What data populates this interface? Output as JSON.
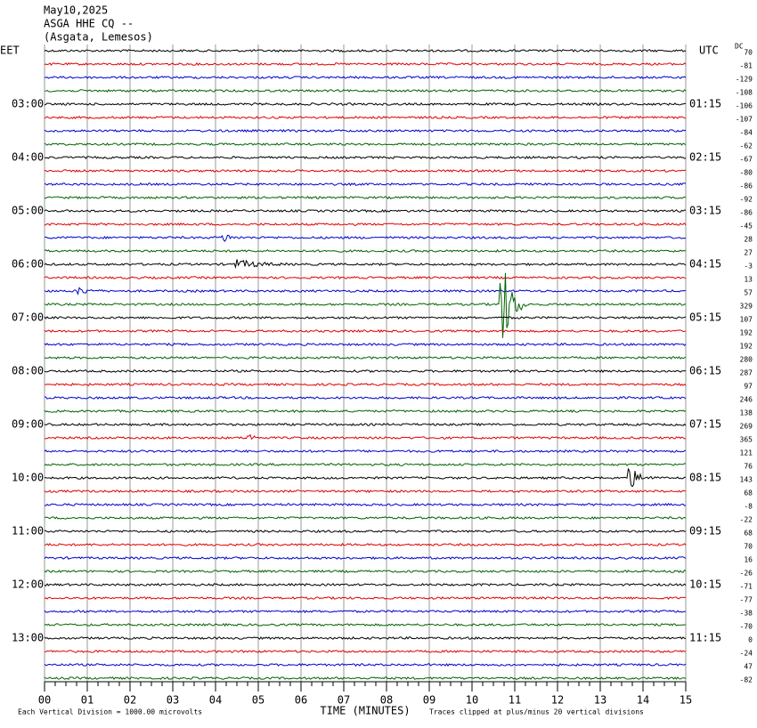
{
  "chart_data": {
    "type": "helicorder",
    "title_lines": [
      "May10,2025",
      "ASGA HHE CQ --",
      "(Asgata, Lemesos)"
    ],
    "left_label": "EET",
    "right_label": "UTC",
    "dc_label": "DC",
    "xlabel": "TIME (MINUTES)",
    "scale_note": "Each Vertical Division = 1000.00 microvolts",
    "clip_note": "Traces clipped at plus/minus 20 vertical divisions",
    "colors": [
      "#000000",
      "#e00000",
      "#0000d0",
      "#006400"
    ],
    "left_times": [
      null,
      null,
      null,
      null,
      "03:00",
      null,
      null,
      null,
      "04:00",
      null,
      null,
      null,
      "05:00",
      null,
      null,
      null,
      "06:00",
      null,
      null,
      null,
      "07:00",
      null,
      null,
      null,
      "08:00",
      null,
      null,
      null,
      "09:00",
      null,
      null,
      null,
      "10:00",
      null,
      null,
      null,
      "11:00",
      null,
      null,
      null,
      "12:00",
      null,
      null,
      null,
      "13:00",
      null,
      null,
      null
    ],
    "right_times": [
      null,
      null,
      null,
      null,
      "01:15",
      null,
      null,
      null,
      "02:15",
      null,
      null,
      null,
      "03:15",
      null,
      null,
      null,
      "04:15",
      null,
      null,
      null,
      "05:15",
      null,
      null,
      null,
      "06:15",
      null,
      null,
      null,
      "07:15",
      null,
      null,
      null,
      "08:15",
      null,
      null,
      null,
      "09:15",
      null,
      null,
      null,
      "10:15",
      null,
      null,
      null,
      "11:15",
      null,
      null,
      null
    ],
    "dc_offsets": [
      70,
      -81,
      -129,
      -108,
      -106,
      -107,
      -84,
      -62,
      -67,
      -80,
      -86,
      -92,
      -86,
      -45,
      28,
      27,
      -3,
      13,
      57,
      329,
      107,
      192,
      192,
      280,
      287,
      97,
      246,
      138,
      269,
      365,
      121,
      76,
      143,
      68,
      -8,
      -22,
      68,
      70,
      16,
      -26,
      -71,
      -77,
      -38,
      -70,
      0,
      -24,
      47,
      -82
    ],
    "xlim": [
      0,
      15
    ],
    "xticks": [
      {
        "value": 0,
        "label": "00"
      },
      {
        "value": 1,
        "label": "01"
      },
      {
        "value": 2,
        "label": "02"
      },
      {
        "value": 3,
        "label": "03"
      },
      {
        "value": 4,
        "label": "04"
      },
      {
        "value": 5,
        "label": "05"
      },
      {
        "value": 6,
        "label": "06"
      },
      {
        "value": 7,
        "label": "07"
      },
      {
        "value": 8,
        "label": "08"
      },
      {
        "value": 9,
        "label": "09"
      },
      10,
      11,
      12,
      13,
      14,
      15
    ]
  }
}
